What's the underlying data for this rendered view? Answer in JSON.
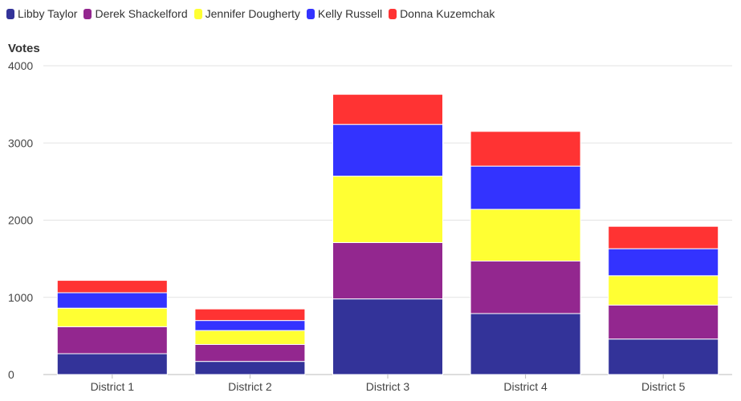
{
  "chart_data": {
    "type": "bar",
    "stacked": true,
    "title": "",
    "xlabel": "",
    "ylabel": "Votes",
    "ylim": [
      0,
      4000
    ],
    "yticks": [
      0,
      1000,
      2000,
      3000,
      4000
    ],
    "grid": true,
    "legend_position": "top-left",
    "categories": [
      "District 1",
      "District 2",
      "District 3",
      "District 4",
      "District 5"
    ],
    "series": [
      {
        "name": "Libby Taylor",
        "color": "#333399",
        "values": [
          270,
          170,
          980,
          790,
          460
        ]
      },
      {
        "name": "Derek Shackelford",
        "color": "#93278F",
        "values": [
          350,
          220,
          730,
          680,
          440
        ]
      },
      {
        "name": "Jennifer Dougherty",
        "color": "#FFFF33",
        "values": [
          240,
          180,
          860,
          670,
          380
        ]
      },
      {
        "name": "Kelly Russell",
        "color": "#3333FF",
        "values": [
          200,
          130,
          670,
          560,
          350
        ]
      },
      {
        "name": "Donna Kuzemchak",
        "color": "#FF3333",
        "values": [
          160,
          150,
          390,
          450,
          290
        ]
      }
    ]
  }
}
